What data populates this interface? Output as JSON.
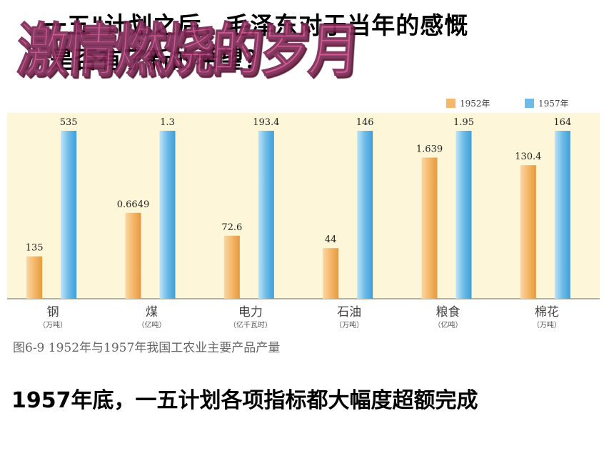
{
  "question": {
    "line1": "一五\"计划之后，毛泽东对于当年的感慨",
    "line2": "是否有了新的希望？"
  },
  "wordart": "激情燃烧的岁月",
  "chart_data": {
    "type": "bar",
    "caption": "图6-9 1952年与1957年我国工农业主要产品产量",
    "categories": [
      {
        "name": "钢",
        "unit": "（万吨）"
      },
      {
        "name": "煤",
        "unit": "（亿吨）"
      },
      {
        "name": "电力",
        "unit": "（亿千瓦时）"
      },
      {
        "name": "石油",
        "unit": "（万吨）"
      },
      {
        "name": "粮食",
        "unit": "（亿吨）"
      },
      {
        "name": "棉花",
        "unit": "（万吨）"
      }
    ],
    "series": [
      {
        "name": "1952年",
        "color": "#f5b76a",
        "values": [
          135,
          0.6649,
          72.6,
          44,
          1.639,
          130.4
        ],
        "labels": [
          "135",
          "0.6649",
          "72.6",
          "44",
          "1.639",
          "130.4"
        ]
      },
      {
        "name": "1957年",
        "color": "#6dbbe8",
        "values": [
          535,
          1.3,
          193.4,
          146,
          1.95,
          164
        ],
        "labels": [
          "535",
          "1.3",
          "193.4",
          "146",
          "1.95",
          "164"
        ]
      }
    ],
    "legend_position": "top-right",
    "grid": false,
    "background": "#fdf6d8"
  },
  "footer": "1957年底，一五计划各项指标都大幅度超额完成"
}
